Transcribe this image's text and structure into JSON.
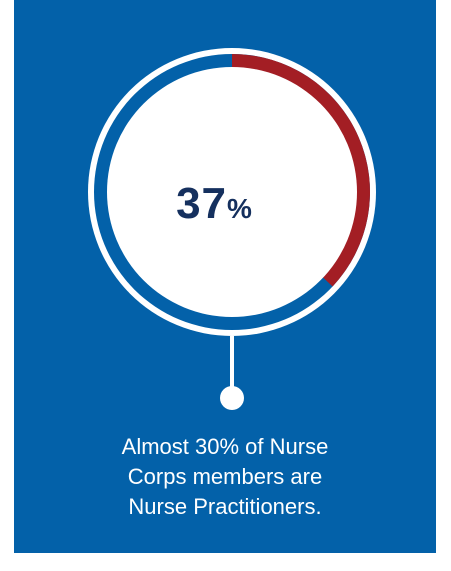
{
  "chart_data": {
    "type": "pie",
    "values": [
      37,
      63
    ],
    "center_label": {
      "number": "37",
      "unit": "%"
    },
    "caption_lines": [
      "Almost 30% of Nurse",
      "Corps members are",
      "Nurse Practitioners."
    ]
  },
  "colors": {
    "background": "#0361a9",
    "highlight_segment": "#a31e24",
    "remaining_segment": "#0361a9",
    "ring": "#ffffff",
    "center_text": "#15305e"
  }
}
